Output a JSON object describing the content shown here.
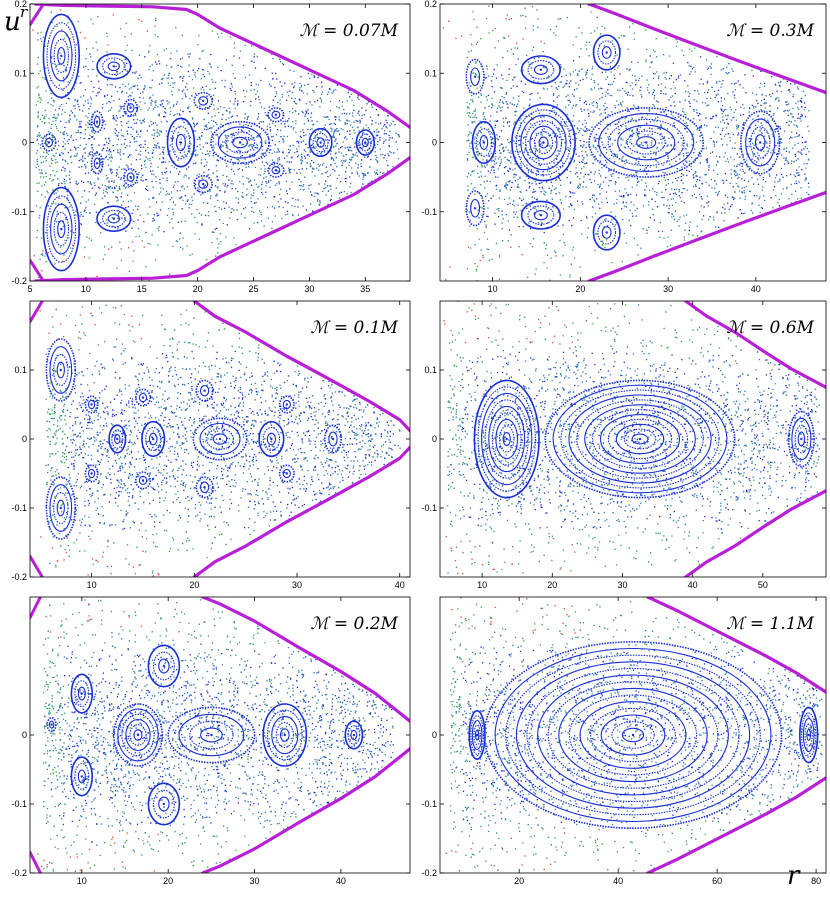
{
  "axes": {
    "ylabel_base": "u",
    "ylabel_sup": "r",
    "xlabel": "r"
  },
  "colors": {
    "boundary": "#b81fd6",
    "regular": "#1a2fd6",
    "chaotic": "#2f7fa8",
    "outer": "#2aa84a",
    "escape": "#e8462a"
  },
  "chart_data": [
    {
      "type": "scatter",
      "title": "ℳ = 0.07M",
      "xlim": [
        5,
        39
      ],
      "ylim": [
        -0.2,
        0.2
      ],
      "xticks": [
        5,
        10,
        15,
        20,
        25,
        30,
        35
      ],
      "yticks": [
        -0.2,
        -0.1,
        0,
        0.1,
        0.2
      ],
      "ytick_labels": [
        "-0.2",
        "-0.1",
        "0",
        "0.1",
        "0.2"
      ],
      "boundary": {
        "x": [
          5.5,
          8,
          12,
          16,
          19,
          20,
          22,
          26,
          30,
          34,
          37,
          39
        ],
        "y": [
          0.2,
          0.198,
          0.197,
          0.196,
          0.192,
          0.185,
          0.165,
          0.135,
          0.105,
          0.075,
          0.045,
          0.022
        ]
      },
      "islands": [
        [
          7.8,
          0.125,
          1.6,
          0.06,
          5
        ],
        [
          7.8,
          -0.125,
          1.6,
          0.06,
          5
        ],
        [
          12.5,
          0.11,
          1.5,
          0.018,
          3
        ],
        [
          12.5,
          -0.11,
          1.5,
          0.018,
          3
        ],
        [
          23.8,
          0,
          2.6,
          0.03,
          4
        ],
        [
          18.5,
          0,
          1.2,
          0.035,
          3
        ],
        [
          6.7,
          0,
          0.6,
          0.012,
          2
        ],
        [
          31,
          0,
          1.0,
          0.02,
          3
        ],
        [
          35,
          0,
          0.8,
          0.018,
          3
        ],
        [
          14,
          0.05,
          0.6,
          0.012,
          2
        ],
        [
          14,
          -0.05,
          0.6,
          0.012,
          2
        ],
        [
          20.5,
          0.06,
          0.8,
          0.012,
          2
        ],
        [
          20.5,
          -0.06,
          0.8,
          0.012,
          2
        ],
        [
          27,
          0.04,
          0.7,
          0.01,
          2
        ],
        [
          27,
          -0.04,
          0.7,
          0.01,
          2
        ],
        [
          11,
          0.03,
          0.5,
          0.015,
          2
        ],
        [
          11,
          -0.03,
          0.5,
          0.015,
          2
        ]
      ],
      "scatter": {
        "xmin": 5.5,
        "xmax": 38,
        "sigma": 0.075
      }
    },
    {
      "type": "scatter",
      "title": "ℳ = 0.3M",
      "xlim": [
        4,
        48
      ],
      "ylim": [
        -0.2,
        0.2
      ],
      "xticks": [
        10,
        20,
        30,
        40
      ],
      "yticks": [
        -0.1,
        0,
        0.1,
        0.2
      ],
      "ytick_labels": [
        "-0.1",
        "0",
        "0.1",
        "0.2"
      ],
      "boundary": {
        "x": [
          21,
          24,
          28,
          33,
          38,
          43,
          48
        ],
        "y": [
          0.2,
          0.186,
          0.166,
          0.142,
          0.118,
          0.095,
          0.072
        ]
      },
      "islands": [
        [
          15.8,
          0,
          3.6,
          0.055,
          7
        ],
        [
          27.5,
          0,
          6.5,
          0.05,
          6
        ],
        [
          40.5,
          0,
          2.2,
          0.045,
          4
        ],
        [
          9,
          0,
          1.3,
          0.03,
          3
        ],
        [
          15.5,
          0.105,
          2.2,
          0.02,
          3
        ],
        [
          15.5,
          -0.105,
          2.2,
          0.02,
          3
        ],
        [
          23,
          0.13,
          1.5,
          0.025,
          3
        ],
        [
          23,
          -0.13,
          1.5,
          0.025,
          3
        ],
        [
          8,
          0.095,
          1.0,
          0.025,
          2
        ],
        [
          8,
          -0.095,
          1.0,
          0.025,
          2
        ]
      ],
      "scatter": {
        "xmin": 7,
        "xmax": 46,
        "sigma": 0.08
      }
    },
    {
      "type": "scatter",
      "title": "ℳ = 0.1M",
      "xlim": [
        4,
        41
      ],
      "ylim": [
        -0.2,
        0.2
      ],
      "xticks": [
        10,
        20,
        30,
        40
      ],
      "yticks": [
        -0.2,
        -0.1,
        0,
        0.1
      ],
      "ytick_labels": [
        "-0.2",
        "-0.1",
        "0",
        "0.1"
      ],
      "boundary": {
        "x": [
          20,
          22,
          25,
          29,
          33,
          37,
          40,
          41
        ],
        "y": [
          0.2,
          0.178,
          0.155,
          0.12,
          0.088,
          0.055,
          0.028,
          0.012
        ]
      },
      "islands": [
        [
          22.5,
          0,
          2.6,
          0.03,
          4
        ],
        [
          27.5,
          0,
          1.2,
          0.025,
          3
        ],
        [
          16,
          0,
          1.1,
          0.025,
          3
        ],
        [
          12.5,
          0,
          0.8,
          0.02,
          3
        ],
        [
          33.5,
          0,
          0.8,
          0.02,
          2
        ],
        [
          7,
          0.1,
          1.4,
          0.045,
          4
        ],
        [
          7,
          -0.1,
          1.4,
          0.045,
          4
        ],
        [
          10,
          0.05,
          0.6,
          0.012,
          2
        ],
        [
          10,
          -0.05,
          0.6,
          0.012,
          2
        ],
        [
          15,
          0.06,
          0.7,
          0.012,
          2
        ],
        [
          15,
          -0.06,
          0.7,
          0.012,
          2
        ],
        [
          21,
          0.07,
          0.8,
          0.015,
          2
        ],
        [
          21,
          -0.07,
          0.8,
          0.015,
          2
        ],
        [
          29,
          0.05,
          0.7,
          0.012,
          2
        ],
        [
          29,
          -0.05,
          0.7,
          0.012,
          2
        ]
      ],
      "scatter": {
        "xmin": 5.5,
        "xmax": 40,
        "sigma": 0.08
      }
    },
    {
      "type": "scatter",
      "title": "ℳ = 0.6M",
      "xlim": [
        4,
        59
      ],
      "ylim": [
        -0.2,
        0.2
      ],
      "xticks": [
        10,
        20,
        30,
        40,
        50
      ],
      "yticks": [
        -0.1,
        0,
        0.1
      ],
      "ytick_labels": [
        "-0.1",
        "0",
        "0.1"
      ],
      "boundary": {
        "x": [
          39,
          42,
          46,
          50,
          54,
          59
        ],
        "y": [
          0.2,
          0.178,
          0.155,
          0.128,
          0.102,
          0.075
        ]
      },
      "islands": [
        [
          13.5,
          0,
          4.6,
          0.085,
          9
        ],
        [
          32.5,
          0,
          13.5,
          0.085,
          12
        ],
        [
          55.5,
          0,
          1.8,
          0.04,
          4
        ]
      ],
      "scatter": {
        "xmin": 5,
        "xmax": 58,
        "sigma": 0.085
      }
    },
    {
      "type": "scatter",
      "title": "ℳ = 0.2M",
      "xlim": [
        4,
        48
      ],
      "ylim": [
        -0.2,
        0.2
      ],
      "xticks": [
        10,
        20,
        30,
        40
      ],
      "yticks": [
        -0.2,
        -0.1,
        0
      ],
      "ytick_labels": [
        "-0.2",
        "-0.1",
        "0"
      ],
      "boundary": {
        "x": [
          24,
          26,
          30,
          35,
          40,
          44,
          47,
          48
        ],
        "y": [
          0.2,
          0.19,
          0.165,
          0.128,
          0.092,
          0.06,
          0.03,
          0.02
        ]
      },
      "islands": [
        [
          16.5,
          0,
          2.8,
          0.045,
          6
        ],
        [
          25,
          0,
          5,
          0.04,
          4
        ],
        [
          33.5,
          0,
          2.5,
          0.045,
          5
        ],
        [
          41.5,
          0,
          1.0,
          0.02,
          3
        ],
        [
          10,
          0.06,
          1.2,
          0.028,
          3
        ],
        [
          10,
          -0.06,
          1.2,
          0.028,
          3
        ],
        [
          19.5,
          0.1,
          1.8,
          0.03,
          3
        ],
        [
          19.5,
          -0.1,
          1.8,
          0.03,
          3
        ],
        [
          6.5,
          0.015,
          0.5,
          0.01,
          2
        ]
      ],
      "scatter": {
        "xmin": 5.5,
        "xmax": 46,
        "sigma": 0.085
      }
    },
    {
      "type": "scatter",
      "title": "ℳ = 1.1M",
      "xlim": [
        4,
        82
      ],
      "ylim": [
        -0.2,
        0.2
      ],
      "xticks": [
        20,
        40,
        60,
        80
      ],
      "yticks": [
        -0.2,
        -0.1,
        0
      ],
      "ytick_labels": [
        "-0.2",
        "-0.1",
        "0"
      ],
      "boundary": {
        "x": [
          46,
          52,
          58,
          64,
          70,
          76,
          82
        ],
        "y": [
          0.2,
          0.18,
          0.158,
          0.136,
          0.114,
          0.09,
          0.062
        ]
      },
      "islands": [
        [
          43,
          0,
          30,
          0.135,
          14
        ],
        [
          11.5,
          0,
          1.6,
          0.035,
          5
        ],
        [
          78.5,
          0,
          1.8,
          0.04,
          5
        ]
      ],
      "scatter": {
        "xmin": 6,
        "xmax": 81,
        "sigma": 0.09
      }
    }
  ]
}
